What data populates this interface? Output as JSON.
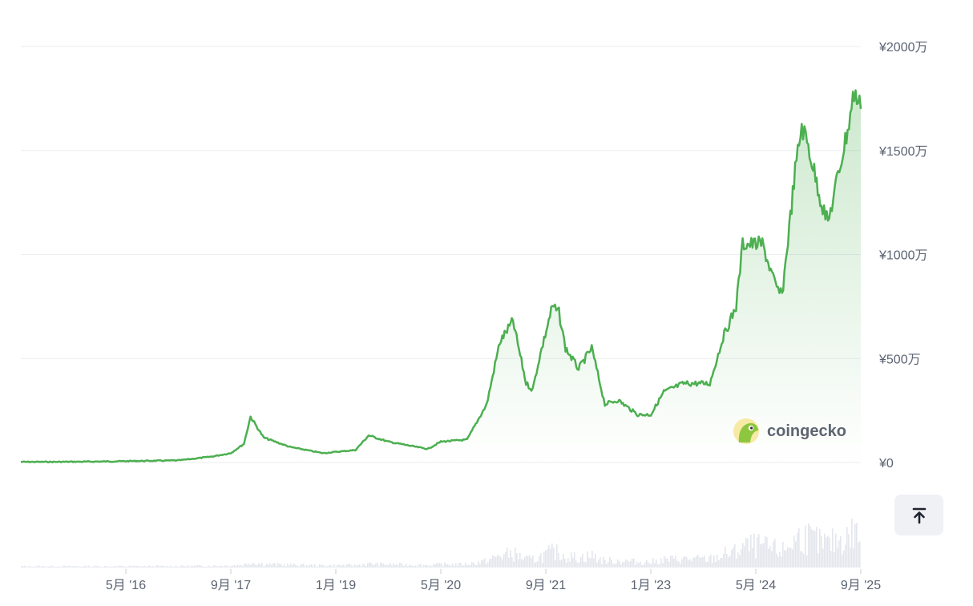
{
  "chart_data": {
    "type": "area",
    "currency_symbol": "¥",
    "y_ticks": [
      {
        "value": 0,
        "label": "¥0"
      },
      {
        "value": 5000000,
        "label": "¥500万"
      },
      {
        "value": 10000000,
        "label": "¥1000万"
      },
      {
        "value": 15000000,
        "label": "¥1500万"
      },
      {
        "value": 20000000,
        "label": "¥2000万"
      }
    ],
    "ylim": [
      0,
      20000000
    ],
    "x_range": [
      "2015-01",
      "2025-09"
    ],
    "x_ticks": [
      {
        "date": "2016-05",
        "label": "5月 '16"
      },
      {
        "date": "2017-09",
        "label": "9月 '17"
      },
      {
        "date": "2019-01",
        "label": "1月 '19"
      },
      {
        "date": "2020-05",
        "label": "5月 '20"
      },
      {
        "date": "2021-09",
        "label": "9月 '21"
      },
      {
        "date": "2023-01",
        "label": "1月 '23"
      },
      {
        "date": "2024-05",
        "label": "5月 '24"
      },
      {
        "date": "2025-09",
        "label": "9月 '25"
      }
    ],
    "series": [
      {
        "x": [
          "2015-01",
          "2015-06",
          "2016-01",
          "2016-06",
          "2017-01",
          "2017-06",
          "2017-09",
          "2017-11",
          "2017-12",
          "2018-02",
          "2018-06",
          "2018-11",
          "2019-04",
          "2019-06",
          "2019-09",
          "2020-03",
          "2020-05",
          "2020-09",
          "2020-12",
          "2021-02",
          "2021-04",
          "2021-06",
          "2021-07",
          "2021-08",
          "2021-10",
          "2021-11",
          "2021-12",
          "2022-02",
          "2022-04",
          "2022-06",
          "2022-08",
          "2022-11",
          "2023-01",
          "2023-03",
          "2023-06",
          "2023-10",
          "2023-12",
          "2024-02",
          "2024-03",
          "2024-06",
          "2024-08",
          "2024-09",
          "2024-11",
          "2024-12",
          "2025-01",
          "2025-03",
          "2025-04",
          "2025-05",
          "2025-07",
          "2025-08",
          "2025-09"
        ],
        "values": [
          30000,
          30000,
          45000,
          70000,
          100000,
          280000,
          450000,
          900000,
          2200000,
          1200000,
          750000,
          450000,
          600000,
          1300000,
          1000000,
          650000,
          1000000,
          1100000,
          2800000,
          5800000,
          6800000,
          3800000,
          3500000,
          5000000,
          7500000,
          7200000,
          5500000,
          4500000,
          5500000,
          2800000,
          3000000,
          2300000,
          2300000,
          3400000,
          3800000,
          3800000,
          6000000,
          7500000,
          10500000,
          10500000,
          8500000,
          8000000,
          14000000,
          16200000,
          15200000,
          12500000,
          11500000,
          13000000,
          16000000,
          17800000,
          17000000
        ],
        "color": "#4caf50"
      }
    ]
  },
  "watermark": {
    "text": "coingecko"
  },
  "icons": {
    "scroll_top": "arrow-up-to-top-icon"
  },
  "colors": {
    "line": "#4caf50",
    "fill": "#4caf50",
    "volume": "#e4e6ed"
  }
}
